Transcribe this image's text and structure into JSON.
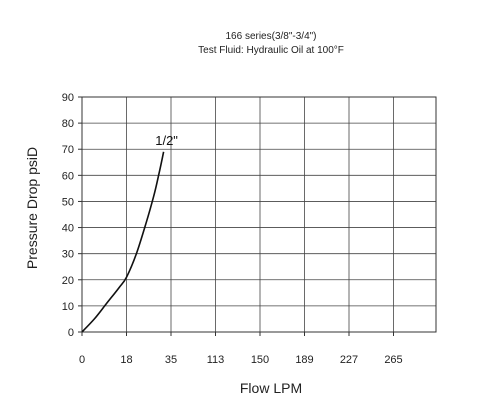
{
  "chart_data": {
    "type": "line",
    "title": "166 series(3/8\"-3/4\")",
    "subtitle": "Test Fluid: Hydraulic Oil at 100°F",
    "xlabel": "Flow LPM",
    "ylabel": "Pressure Drop psiD",
    "x_tick_labels": [
      "0",
      "18",
      "35",
      "113",
      "150",
      "189",
      "227",
      "265"
    ],
    "y_ticks": [
      0,
      10,
      20,
      30,
      40,
      50,
      60,
      70,
      80,
      90
    ],
    "ylim": [
      0,
      90
    ],
    "grid": true,
    "series": [
      {
        "name": "1/2\"",
        "x": [
          0,
          5,
          10,
          15,
          18,
          22,
          26,
          29,
          31,
          33
        ],
        "y": [
          0,
          5,
          11,
          17,
          21,
          30,
          42,
          52,
          60,
          69
        ]
      }
    ]
  }
}
